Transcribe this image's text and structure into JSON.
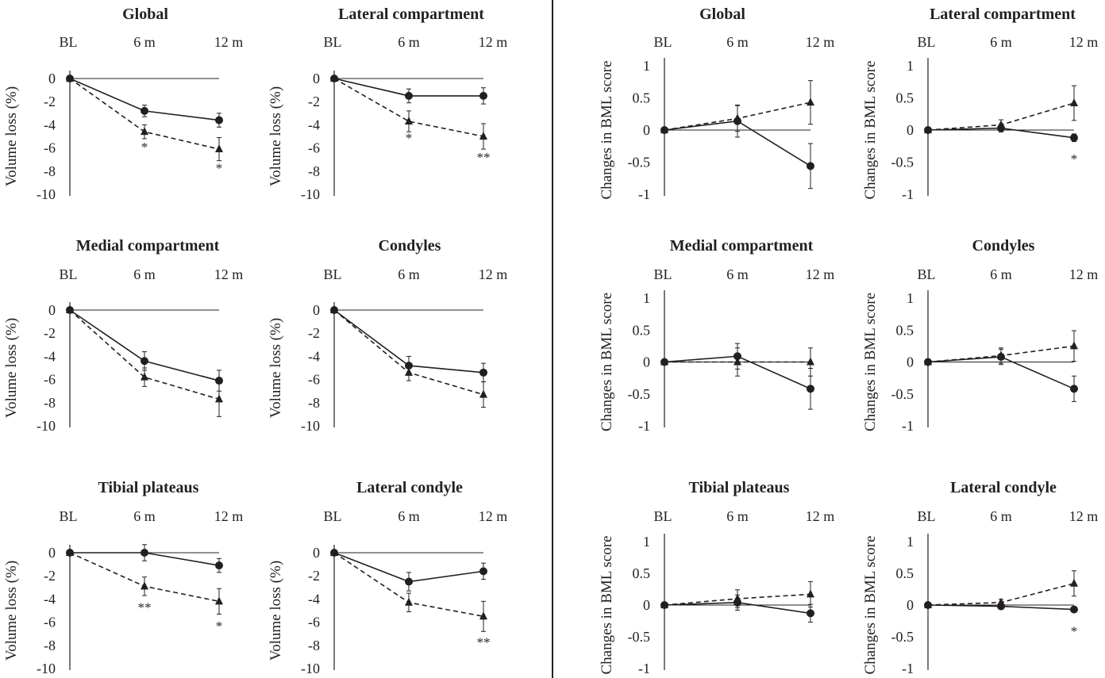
{
  "chart_data": [
    {
      "type": "line",
      "title": "Global",
      "categories": [
        "BL",
        "6 m",
        "12 m"
      ],
      "ylabel": "Volume loss (%)",
      "ylim": [
        -10,
        0
      ],
      "yticks": [
        0,
        -2,
        -4,
        -6,
        -8,
        -10
      ],
      "tick_labels": [
        "0",
        "-2",
        "-4",
        "-6",
        "-8",
        "-10"
      ],
      "series": [
        {
          "marker": "circle",
          "line": "solid",
          "values": [
            0,
            -2.8,
            -3.6
          ],
          "err": [
            0,
            0.5,
            0.6
          ]
        },
        {
          "marker": "triangle",
          "line": "dashed",
          "values": [
            0,
            -4.6,
            -6.1
          ],
          "err": [
            0,
            0.6,
            1.0
          ]
        }
      ],
      "annotations": [
        {
          "x": 1,
          "y": -6.3,
          "text": "*"
        },
        {
          "x": 2,
          "y": -8.1,
          "text": "*"
        }
      ]
    },
    {
      "type": "line",
      "title": "Lateral compartment",
      "categories": [
        "BL",
        "6 m",
        "12 m"
      ],
      "ylabel": "Volume loss (%)",
      "ylim": [
        -10,
        0
      ],
      "yticks": [
        0,
        -2,
        -4,
        -6,
        -8,
        -10
      ],
      "tick_labels": [
        "0",
        "-2",
        "-4",
        "-6",
        "-8",
        "-10"
      ],
      "series": [
        {
          "marker": "circle",
          "line": "solid",
          "values": [
            0,
            -1.5,
            -1.5
          ],
          "err": [
            0,
            0.6,
            0.7
          ]
        },
        {
          "marker": "triangle",
          "line": "dashed",
          "values": [
            0,
            -3.7,
            -5.0
          ],
          "err": [
            0,
            0.9,
            1.1
          ]
        }
      ],
      "annotations": [
        {
          "x": 1,
          "y": -5.5,
          "text": "*"
        },
        {
          "x": 2,
          "y": -7.2,
          "text": "**"
        }
      ]
    },
    {
      "type": "line",
      "title": "Medial compartment",
      "categories": [
        "BL",
        "6 m",
        "12 m"
      ],
      "ylabel": "Volume loss (%)",
      "ylim": [
        -10,
        0
      ],
      "yticks": [
        0,
        -2,
        -4,
        -6,
        -8,
        -10
      ],
      "tick_labels": [
        "0",
        "-2",
        "-4",
        "-6",
        "-8",
        "-10"
      ],
      "series": [
        {
          "marker": "circle",
          "line": "solid",
          "values": [
            0,
            -4.4,
            -6.1
          ],
          "err": [
            0,
            0.8,
            0.9
          ]
        },
        {
          "marker": "triangle",
          "line": "dashed",
          "values": [
            0,
            -5.8,
            -7.7
          ],
          "err": [
            0,
            0.8,
            1.5
          ]
        }
      ],
      "annotations": []
    },
    {
      "type": "line",
      "title": "Condyles",
      "categories": [
        "BL",
        "6 m",
        "12 m"
      ],
      "ylabel": "Volume loss (%)",
      "ylim": [
        -10,
        0
      ],
      "yticks": [
        0,
        -2,
        -4,
        -6,
        -8,
        -10
      ],
      "tick_labels": [
        "0",
        "-2",
        "-4",
        "-6",
        "-8",
        "-10"
      ],
      "series": [
        {
          "marker": "circle",
          "line": "solid",
          "values": [
            0,
            -4.8,
            -5.4
          ],
          "err": [
            0,
            0.8,
            0.8
          ]
        },
        {
          "marker": "triangle",
          "line": "dashed",
          "values": [
            0,
            -5.4,
            -7.3
          ],
          "err": [
            0,
            0.7,
            1.1
          ]
        }
      ],
      "annotations": []
    },
    {
      "type": "line",
      "title": "Tibial plateaus",
      "categories": [
        "BL",
        "6 m",
        "12 m"
      ],
      "ylabel": "Volume loss (%)",
      "ylim": [
        -10,
        0
      ],
      "yticks": [
        0,
        -2,
        -4,
        -6,
        -8,
        -10
      ],
      "tick_labels": [
        "0",
        "-2",
        "-4",
        "-6",
        "-8",
        "-10"
      ],
      "series": [
        {
          "marker": "circle",
          "line": "solid",
          "values": [
            0,
            0,
            -1.1
          ],
          "err": [
            0,
            0.7,
            0.6
          ]
        },
        {
          "marker": "triangle",
          "line": "dashed",
          "values": [
            0,
            -2.9,
            -4.2
          ],
          "err": [
            0,
            0.8,
            1.1
          ]
        }
      ],
      "annotations": [
        {
          "x": 1,
          "y": -5.1,
          "text": "**"
        },
        {
          "x": 2,
          "y": -6.7,
          "text": "*"
        }
      ]
    },
    {
      "type": "line",
      "title": "Lateral condyle",
      "categories": [
        "BL",
        "6 m",
        "12 m"
      ],
      "ylabel": "Volume loss (%)",
      "ylim": [
        -10,
        0
      ],
      "yticks": [
        0,
        -2,
        -4,
        -6,
        -8,
        -10
      ],
      "tick_labels": [
        "0",
        "-2",
        "-4",
        "-6",
        "-8",
        "-10"
      ],
      "series": [
        {
          "marker": "circle",
          "line": "solid",
          "values": [
            0,
            -2.5,
            -1.6
          ],
          "err": [
            0,
            0.8,
            0.7
          ]
        },
        {
          "marker": "triangle",
          "line": "dashed",
          "values": [
            0,
            -4.3,
            -5.5
          ],
          "err": [
            0,
            0.8,
            1.3
          ]
        }
      ],
      "annotations": [
        {
          "x": 2,
          "y": -8.1,
          "text": "**"
        }
      ]
    },
    {
      "type": "line",
      "title": "Global",
      "categories": [
        "BL",
        "6 m",
        "12 m"
      ],
      "ylabel": "Changes in BML score",
      "ylim": [
        -1,
        1
      ],
      "yticks": [
        1,
        0.5,
        0,
        -0.5,
        -1
      ],
      "tick_labels": [
        "1",
        "0.5",
        "0",
        "-0.5",
        "-1"
      ],
      "series": [
        {
          "marker": "circle",
          "line": "solid",
          "values": [
            0,
            0.14,
            -0.56
          ],
          "err": [
            0,
            0.25,
            0.35
          ]
        },
        {
          "marker": "triangle",
          "line": "dashed",
          "values": [
            0,
            0.18,
            0.43
          ],
          "err": [
            0,
            0.2,
            0.34
          ]
        }
      ],
      "annotations": []
    },
    {
      "type": "line",
      "title": "Lateral compartment",
      "categories": [
        "BL",
        "6 m",
        "12 m"
      ],
      "ylabel": "Changes in BML score",
      "ylim": [
        -1,
        1
      ],
      "yticks": [
        1,
        0.5,
        0,
        -0.5,
        -1
      ],
      "tick_labels": [
        "1",
        "0.5",
        "0",
        "-0.5",
        "-1"
      ],
      "series": [
        {
          "marker": "circle",
          "line": "solid",
          "values": [
            0,
            0.03,
            -0.12
          ],
          "err": [
            0,
            0.06,
            0.06
          ]
        },
        {
          "marker": "triangle",
          "line": "dashed",
          "values": [
            0,
            0.08,
            0.42
          ],
          "err": [
            0,
            0.08,
            0.27
          ]
        }
      ],
      "annotations": [
        {
          "x": 2,
          "y": -0.52,
          "text": "*"
        }
      ]
    },
    {
      "type": "line",
      "title": "Medial compartment",
      "categories": [
        "BL",
        "6 m",
        "12 m"
      ],
      "ylabel": "Changes in BML score",
      "ylim": [
        -1,
        1
      ],
      "yticks": [
        1,
        0.5,
        0,
        -0.5,
        -1
      ],
      "tick_labels": [
        "1",
        "0.5",
        "0",
        "-0.5",
        "-1"
      ],
      "series": [
        {
          "marker": "circle",
          "line": "solid",
          "values": [
            0,
            0.09,
            -0.42
          ],
          "err": [
            0,
            0.2,
            0.32
          ]
        },
        {
          "marker": "triangle",
          "line": "dashed",
          "values": [
            0,
            0,
            0
          ],
          "err": [
            0,
            0.22,
            0.22
          ]
        }
      ],
      "annotations": []
    },
    {
      "type": "line",
      "title": "Condyles",
      "categories": [
        "BL",
        "6 m",
        "12 m"
      ],
      "ylabel": "Changes in BML score",
      "ylim": [
        -1,
        1
      ],
      "yticks": [
        1,
        0.5,
        0,
        -0.5,
        -1
      ],
      "tick_labels": [
        "1",
        "0.5",
        "0",
        "-0.5",
        "-1"
      ],
      "series": [
        {
          "marker": "circle",
          "line": "solid",
          "values": [
            0,
            0.08,
            -0.42
          ],
          "err": [
            0,
            0.12,
            0.2
          ]
        },
        {
          "marker": "triangle",
          "line": "dashed",
          "values": [
            0,
            0.1,
            0.25
          ],
          "err": [
            0,
            0.12,
            0.24
          ]
        }
      ],
      "annotations": []
    },
    {
      "type": "line",
      "title": "Tibial plateaus",
      "categories": [
        "BL",
        "6 m",
        "12 m"
      ],
      "ylabel": "Changes in BML score",
      "ylim": [
        -1,
        1
      ],
      "yticks": [
        1,
        0.5,
        0,
        -0.5,
        -1
      ],
      "tick_labels": [
        "1",
        "0.5",
        "0",
        "-0.5",
        "-1"
      ],
      "series": [
        {
          "marker": "circle",
          "line": "solid",
          "values": [
            0,
            0.04,
            -0.13
          ],
          "err": [
            0,
            0.12,
            0.14
          ]
        },
        {
          "marker": "triangle",
          "line": "dashed",
          "values": [
            0,
            0.1,
            0.17
          ],
          "err": [
            0,
            0.14,
            0.2
          ]
        }
      ],
      "annotations": []
    },
    {
      "type": "line",
      "title": "Lateral condyle",
      "categories": [
        "BL",
        "6 m",
        "12 m"
      ],
      "ylabel": "Changes in BML score",
      "ylim": [
        -1,
        1
      ],
      "yticks": [
        1,
        0.5,
        0,
        -0.5,
        -1
      ],
      "tick_labels": [
        "1",
        "0.5",
        "0",
        "-0.5",
        "-1"
      ],
      "series": [
        {
          "marker": "circle",
          "line": "solid",
          "values": [
            0,
            -0.02,
            -0.07
          ],
          "err": [
            0,
            0.04,
            0.04
          ]
        },
        {
          "marker": "triangle",
          "line": "dashed",
          "values": [
            0,
            0.04,
            0.34
          ],
          "err": [
            0,
            0.05,
            0.2
          ]
        }
      ],
      "annotations": [
        {
          "x": 2,
          "y": -0.48,
          "text": "*"
        }
      ]
    }
  ],
  "colors": {
    "ink": "#231f20",
    "background": "#ffffff"
  }
}
